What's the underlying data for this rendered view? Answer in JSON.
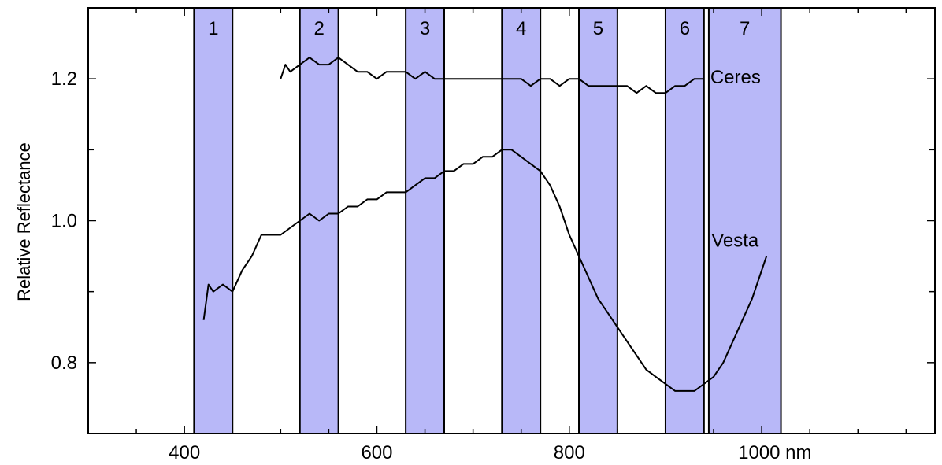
{
  "chart_data": {
    "type": "line",
    "ylabel": "Relative Reflectance",
    "x_unit": "nm",
    "xlim": [
      300,
      1180
    ],
    "ylim": [
      0.7,
      1.3
    ],
    "x_ticks": [
      {
        "value": 400,
        "label": "400"
      },
      {
        "value": 600,
        "label": "600"
      },
      {
        "value": 800,
        "label": "800"
      },
      {
        "value": 1000,
        "label": "1000 nm"
      }
    ],
    "y_ticks": [
      {
        "value": 0.8,
        "label": "0.8"
      },
      {
        "value": 1.0,
        "label": "1.0"
      },
      {
        "value": 1.2,
        "label": "1.2"
      }
    ],
    "bands": [
      {
        "label": "1",
        "start": 410,
        "end": 450
      },
      {
        "label": "2",
        "start": 520,
        "end": 560
      },
      {
        "label": "3",
        "start": 630,
        "end": 670
      },
      {
        "label": "4",
        "start": 730,
        "end": 770
      },
      {
        "label": "5",
        "start": 810,
        "end": 850
      },
      {
        "label": "6",
        "start": 900,
        "end": 940
      },
      {
        "label": "7",
        "start": 945,
        "end": 1020
      }
    ],
    "series": [
      {
        "name": "Ceres",
        "x": [
          500,
          505,
          510,
          520,
          530,
          540,
          550,
          560,
          570,
          580,
          590,
          600,
          610,
          620,
          630,
          640,
          650,
          660,
          670,
          680,
          690,
          700,
          710,
          720,
          730,
          740,
          750,
          760,
          770,
          780,
          790,
          800,
          810,
          820,
          830,
          840,
          850,
          860,
          870,
          880,
          890,
          900,
          910,
          920,
          930,
          940
        ],
        "y": [
          1.2,
          1.22,
          1.21,
          1.22,
          1.23,
          1.22,
          1.22,
          1.23,
          1.22,
          1.21,
          1.21,
          1.2,
          1.21,
          1.21,
          1.21,
          1.2,
          1.21,
          1.2,
          1.2,
          1.2,
          1.2,
          1.2,
          1.2,
          1.2,
          1.2,
          1.2,
          1.2,
          1.19,
          1.2,
          1.2,
          1.19,
          1.2,
          1.2,
          1.19,
          1.19,
          1.19,
          1.19,
          1.19,
          1.18,
          1.19,
          1.18,
          1.18,
          1.19,
          1.19,
          1.2,
          1.2
        ]
      },
      {
        "name": "Vesta",
        "x": [
          420,
          425,
          430,
          440,
          450,
          460,
          470,
          480,
          490,
          500,
          510,
          520,
          530,
          540,
          550,
          560,
          570,
          580,
          590,
          600,
          610,
          620,
          630,
          640,
          650,
          660,
          670,
          680,
          690,
          700,
          710,
          720,
          730,
          740,
          750,
          760,
          770,
          780,
          790,
          800,
          810,
          820,
          830,
          840,
          850,
          860,
          870,
          880,
          890,
          900,
          910,
          920,
          930,
          940,
          950,
          960,
          970,
          980,
          990,
          1000,
          1005
        ],
        "y": [
          0.86,
          0.91,
          0.9,
          0.91,
          0.9,
          0.93,
          0.95,
          0.98,
          0.98,
          0.98,
          0.99,
          1.0,
          1.01,
          1.0,
          1.01,
          1.01,
          1.02,
          1.02,
          1.03,
          1.03,
          1.04,
          1.04,
          1.04,
          1.05,
          1.06,
          1.06,
          1.07,
          1.07,
          1.08,
          1.08,
          1.09,
          1.09,
          1.1,
          1.1,
          1.09,
          1.08,
          1.07,
          1.05,
          1.02,
          0.98,
          0.95,
          0.92,
          0.89,
          0.87,
          0.85,
          0.83,
          0.81,
          0.79,
          0.78,
          0.77,
          0.76,
          0.76,
          0.76,
          0.77,
          0.78,
          0.8,
          0.83,
          0.86,
          0.89,
          0.93,
          0.95
        ]
      }
    ]
  }
}
